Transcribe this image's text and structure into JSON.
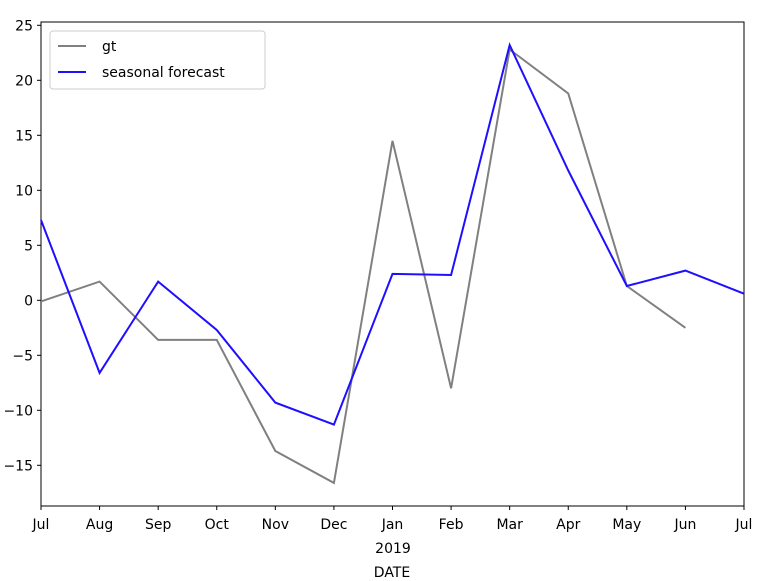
{
  "chart_data": {
    "type": "line",
    "x": [
      "2018-07",
      "2018-08",
      "2018-09",
      "2018-10",
      "2018-11",
      "2018-12",
      "2019-01",
      "2019-02",
      "2019-03",
      "2019-04",
      "2019-05",
      "2019-06",
      "2019-07"
    ],
    "x_tick_labels": [
      "Jul",
      "Aug",
      "Sep",
      "Oct",
      "Nov",
      "Dec",
      "Jan",
      "Feb",
      "Mar",
      "Apr",
      "May",
      "Jun",
      "Jul"
    ],
    "x_secondary_label": "2019",
    "xlabel": "DATE",
    "ylabel": "",
    "ylim": [
      -18.7,
      25.3
    ],
    "yticks": [
      -15,
      -10,
      -5,
      0,
      5,
      10,
      15,
      20,
      25
    ],
    "grid": false,
    "legend": "top-left",
    "series": [
      {
        "name": "gt",
        "color": "#808080",
        "values": [
          -0.1,
          1.7,
          -3.6,
          -3.6,
          -13.7,
          -16.6,
          14.5,
          -8.0,
          22.8,
          18.8,
          1.3,
          -2.5,
          null
        ]
      },
      {
        "name": "seasonal forecast",
        "color": "#1f0fff",
        "values": [
          7.3,
          -6.6,
          1.7,
          -2.7,
          -9.3,
          -11.3,
          2.4,
          2.3,
          23.2,
          11.8,
          1.3,
          2.7,
          0.6
        ]
      }
    ]
  }
}
